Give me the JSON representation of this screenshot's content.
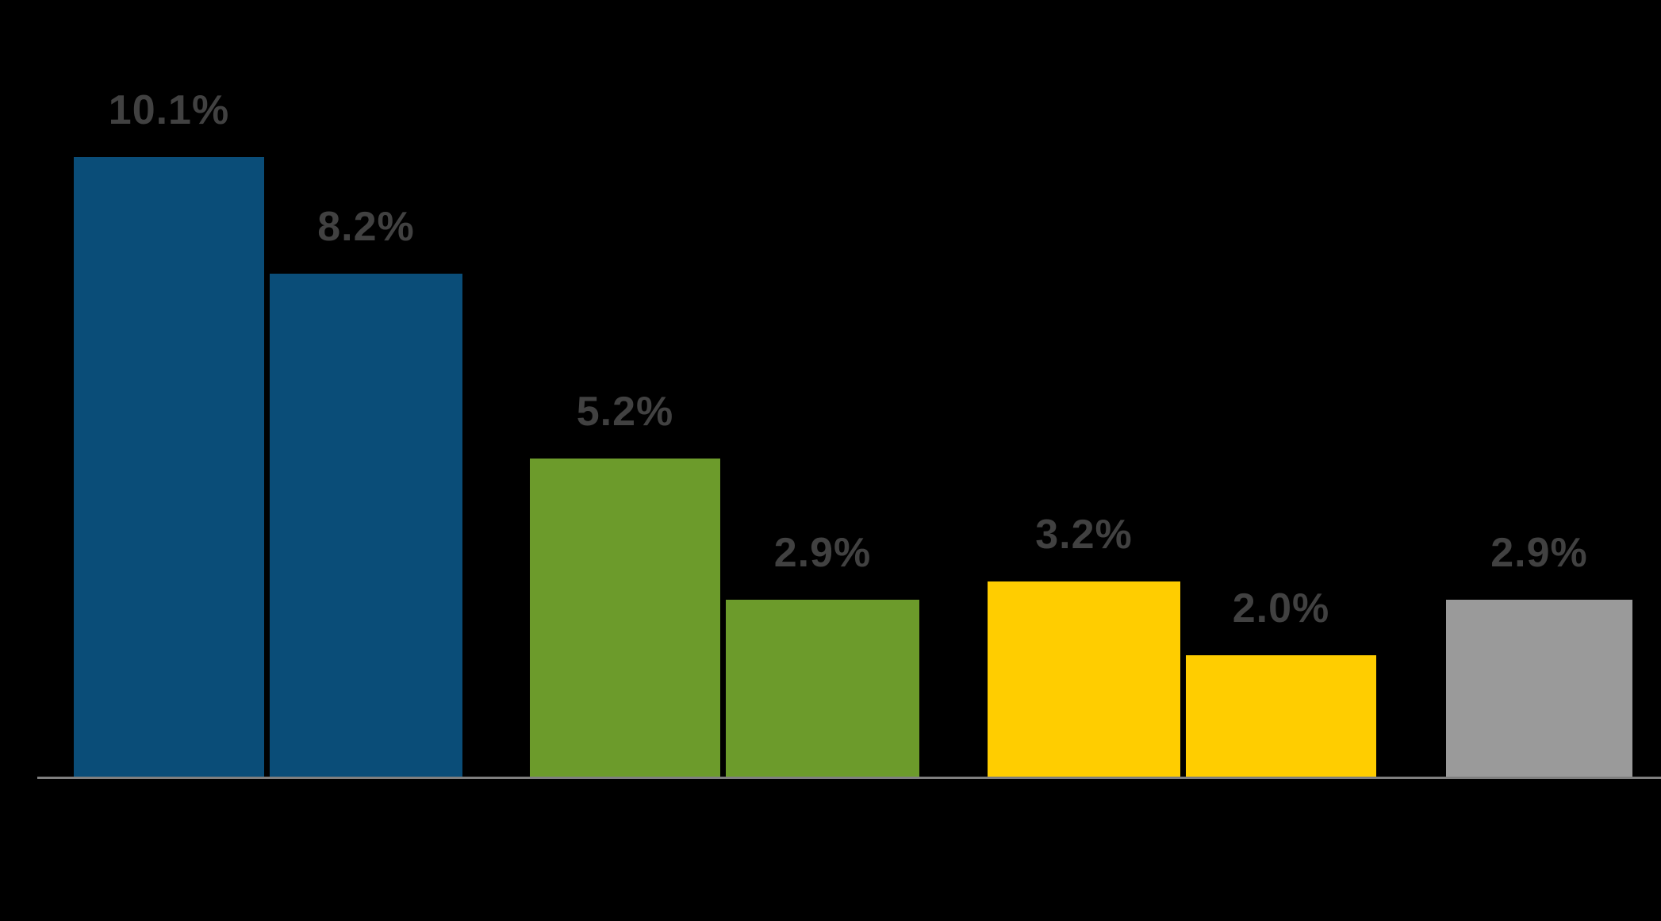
{
  "chart_data": {
    "type": "bar",
    "title": "",
    "values": [
      10.1,
      8.2,
      5.2,
      2.9,
      3.2,
      2.0,
      2.9
    ],
    "data_labels": [
      "10.1%",
      "8.2%",
      "5.2%",
      "2.9%",
      "3.2%",
      "2.0%",
      "2.9%"
    ],
    "bar_colors": [
      "#0A4D78",
      "#0A4D78",
      "#6C9B2B",
      "#6C9B2B",
      "#FFCD00",
      "#FFCD00",
      "#9A9A9A"
    ],
    "label_color": "#414141",
    "axis_line_color": "#7F7F7F",
    "background_color": "#000000",
    "ylim": [
      0,
      10.1
    ],
    "x_tick_labels": [],
    "y_tick_labels": [],
    "legend_position": "none",
    "grid": false
  }
}
